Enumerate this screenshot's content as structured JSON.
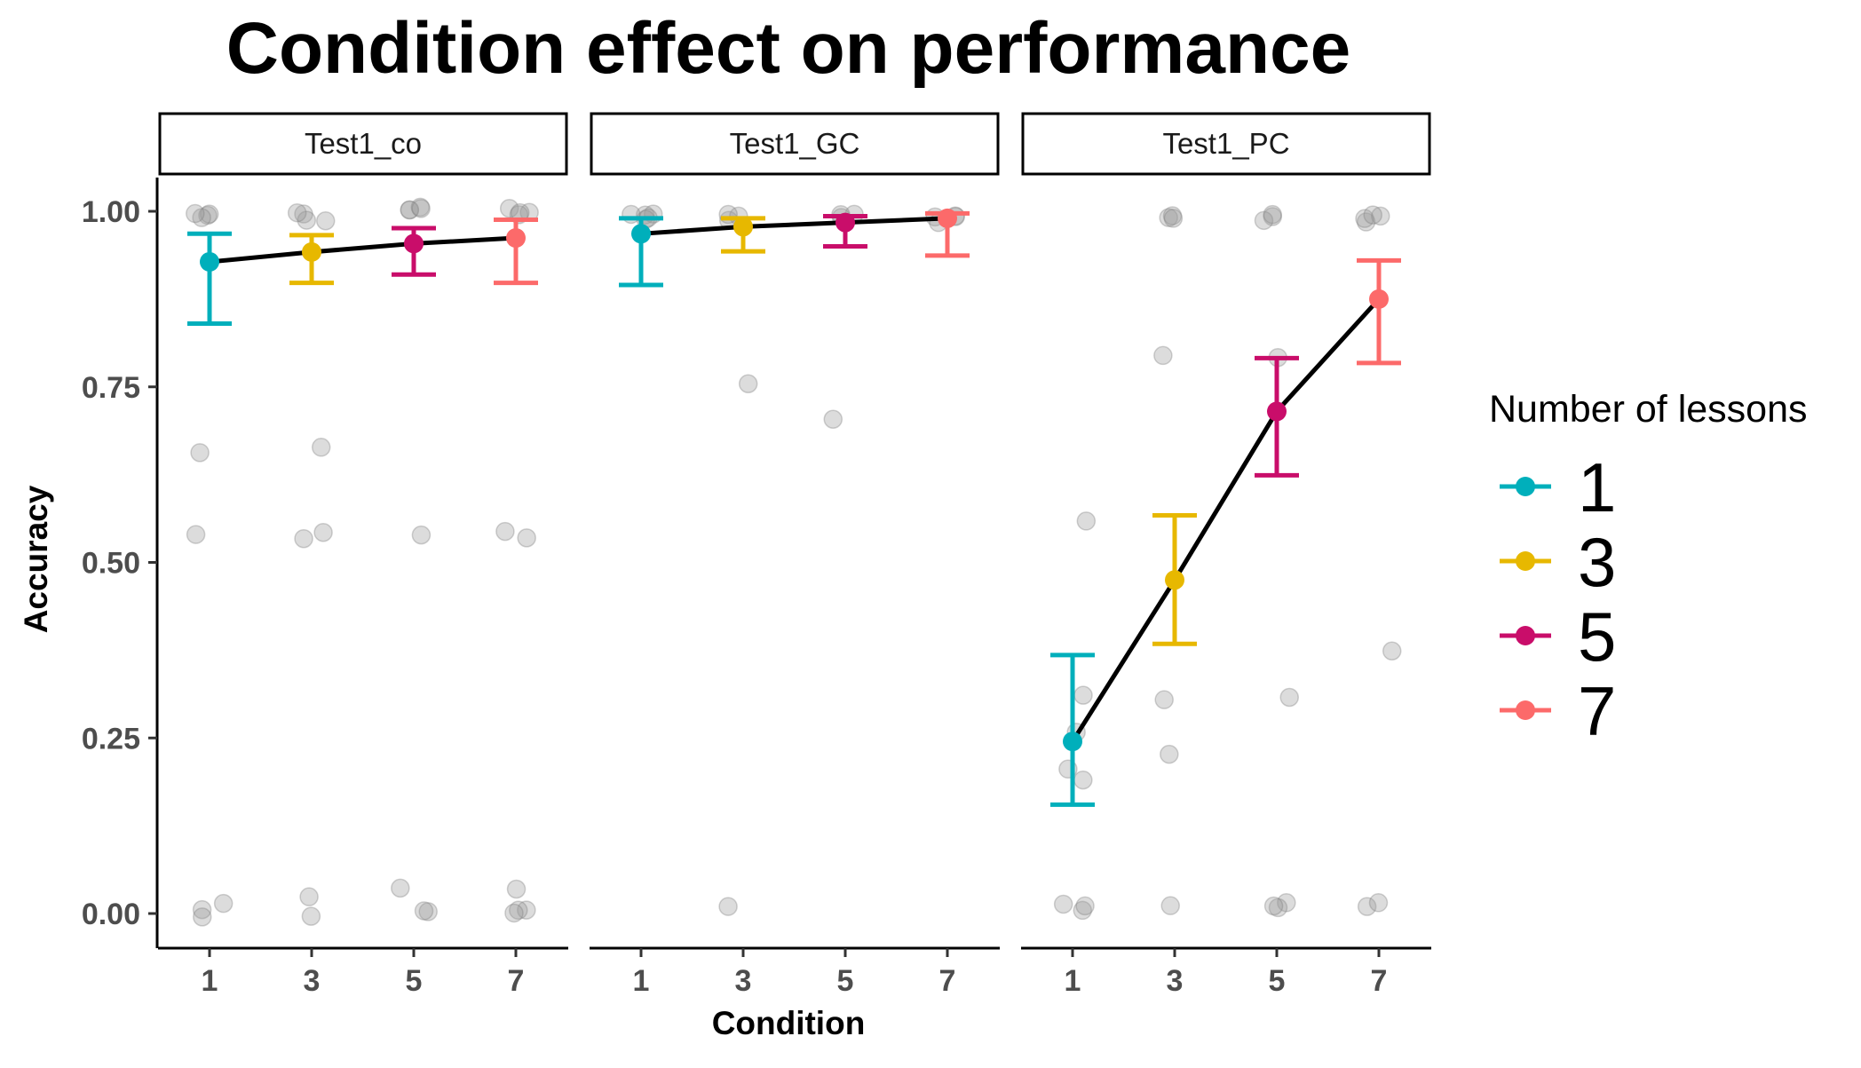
{
  "chart_data": {
    "type": "scatter",
    "title": "Condition effect on performance",
    "xlabel": "Condition",
    "ylabel": "Accuracy",
    "x_ticks": [
      "1",
      "3",
      "5",
      "7"
    ],
    "y_ticks": [
      "0.00",
      "0.25",
      "0.50",
      "0.75",
      "1.00"
    ],
    "ylim": [
      -0.05,
      1.05
    ],
    "grid": false,
    "legend": {
      "title": "Number of lessons",
      "placement": "right",
      "entries": [
        {
          "label": "1",
          "color": "#00AFBB"
        },
        {
          "label": "3",
          "color": "#E7B800"
        },
        {
          "label": "5",
          "color": "#C90D6A"
        },
        {
          "label": "7",
          "color": "#FC6A6A"
        }
      ]
    },
    "panels": [
      {
        "strip": "Test1_co",
        "means": [
          {
            "x": 1,
            "y": 0.928,
            "low": 0.84,
            "high": 0.968
          },
          {
            "x": 3,
            "y": 0.942,
            "low": 0.898,
            "high": 0.966
          },
          {
            "x": 5,
            "y": 0.954,
            "low": 0.91,
            "high": 0.976
          },
          {
            "x": 7,
            "y": 0.962,
            "low": 0.898,
            "high": 0.988
          }
        ],
        "raw_points": [
          {
            "x": 1,
            "values": [
              1.0,
              1.0,
              0.99,
              1.0,
              0.66,
              0.54,
              0.02,
              0.0,
              0.0
            ]
          },
          {
            "x": 3,
            "values": [
              1.0,
              0.99,
              1.0,
              0.99,
              0.66,
              0.54,
              0.54,
              0.02,
              0.0
            ]
          },
          {
            "x": 5,
            "values": [
              1.0,
              1.0,
              1.0,
              1.0,
              0.54,
              0.03,
              0.0,
              0.0
            ]
          },
          {
            "x": 7,
            "values": [
              1.0,
              1.0,
              0.99,
              1.0,
              0.54,
              0.54,
              0.03,
              0.0,
              0.0,
              0.0
            ]
          }
        ]
      },
      {
        "strip": "Test1_GC",
        "means": [
          {
            "x": 1,
            "y": 0.968,
            "low": 0.895,
            "high": 0.99
          },
          {
            "x": 3,
            "y": 0.978,
            "low": 0.943,
            "high": 0.99
          },
          {
            "x": 5,
            "y": 0.984,
            "low": 0.95,
            "high": 0.993
          },
          {
            "x": 7,
            "y": 0.99,
            "low": 0.937,
            "high": 0.997
          }
        ],
        "raw_points": [
          {
            "x": 1,
            "values": [
              0.99,
              0.99,
              0.99,
              0.99,
              0.99
            ]
          },
          {
            "x": 3,
            "values": [
              0.99,
              0.99,
              0.99,
              0.75,
              0.01
            ]
          },
          {
            "x": 5,
            "values": [
              0.99,
              0.99,
              0.99,
              0.71
            ]
          },
          {
            "x": 7,
            "values": [
              0.99,
              0.99,
              0.99,
              0.99
            ]
          }
        ]
      },
      {
        "strip": "Test1_PC",
        "means": [
          {
            "x": 1,
            "y": 0.245,
            "low": 0.155,
            "high": 0.368
          },
          {
            "x": 3,
            "y": 0.475,
            "low": 0.384,
            "high": 0.567
          },
          {
            "x": 5,
            "y": 0.715,
            "low": 0.624,
            "high": 0.791
          },
          {
            "x": 7,
            "y": 0.875,
            "low": 0.784,
            "high": 0.93
          }
        ],
        "raw_points": [
          {
            "x": 1,
            "values": [
              0.565,
              0.31,
              0.205,
              0.255,
              0.185,
              0.01,
              0.01,
              0.01
            ]
          },
          {
            "x": 3,
            "values": [
              0.99,
              0.99,
              0.99,
              0.79,
              0.31,
              0.23,
              0.01
            ]
          },
          {
            "x": 5,
            "values": [
              0.99,
              0.99,
              0.99,
              0.79,
              0.31,
              0.01,
              0.01,
              0.01
            ]
          },
          {
            "x": 7,
            "values": [
              0.99,
              0.99,
              0.99,
              0.99,
              0.37,
              0.01,
              0.01
            ]
          }
        ]
      }
    ]
  }
}
